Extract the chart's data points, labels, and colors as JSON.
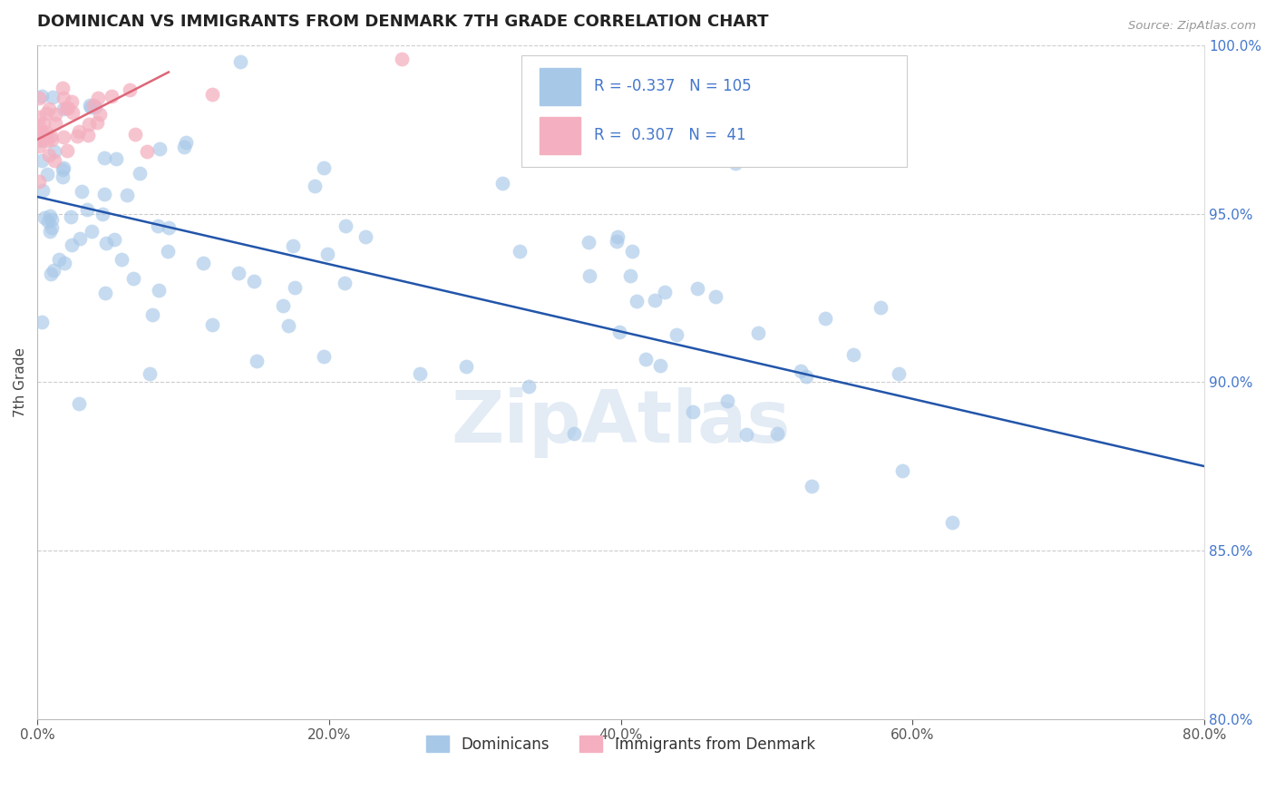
{
  "title": "DOMINICAN VS IMMIGRANTS FROM DENMARK 7TH GRADE CORRELATION CHART",
  "source": "Source: ZipAtlas.com",
  "ylabel": "7th Grade",
  "xlim": [
    0.0,
    80.0
  ],
  "ylim": [
    80.0,
    100.0
  ],
  "blue_R": -0.337,
  "blue_N": 105,
  "pink_R": 0.307,
  "pink_N": 41,
  "blue_color": "#a8c8e8",
  "blue_edge_color": "#a8c8e8",
  "blue_line_color": "#2255aa",
  "pink_color": "#f4b0c0",
  "pink_edge_color": "#f4b0c0",
  "pink_line_color": "#dd6677",
  "legend_label_blue": "Dominicans",
  "legend_label_pink": "Immigrants from Denmark",
  "watermark": "ZipAtlas",
  "grid_color": "#cccccc",
  "title_color": "#222222",
  "right_tick_color": "#4477cc",
  "source_color": "#999999",
  "blue_trend_x0": 0.0,
  "blue_trend_y0": 95.5,
  "blue_trend_x1": 80.0,
  "blue_trend_y1": 87.5,
  "pink_trend_x0": 0.0,
  "pink_trend_y0": 97.2,
  "pink_trend_x1": 9.0,
  "pink_trend_y1": 99.2
}
